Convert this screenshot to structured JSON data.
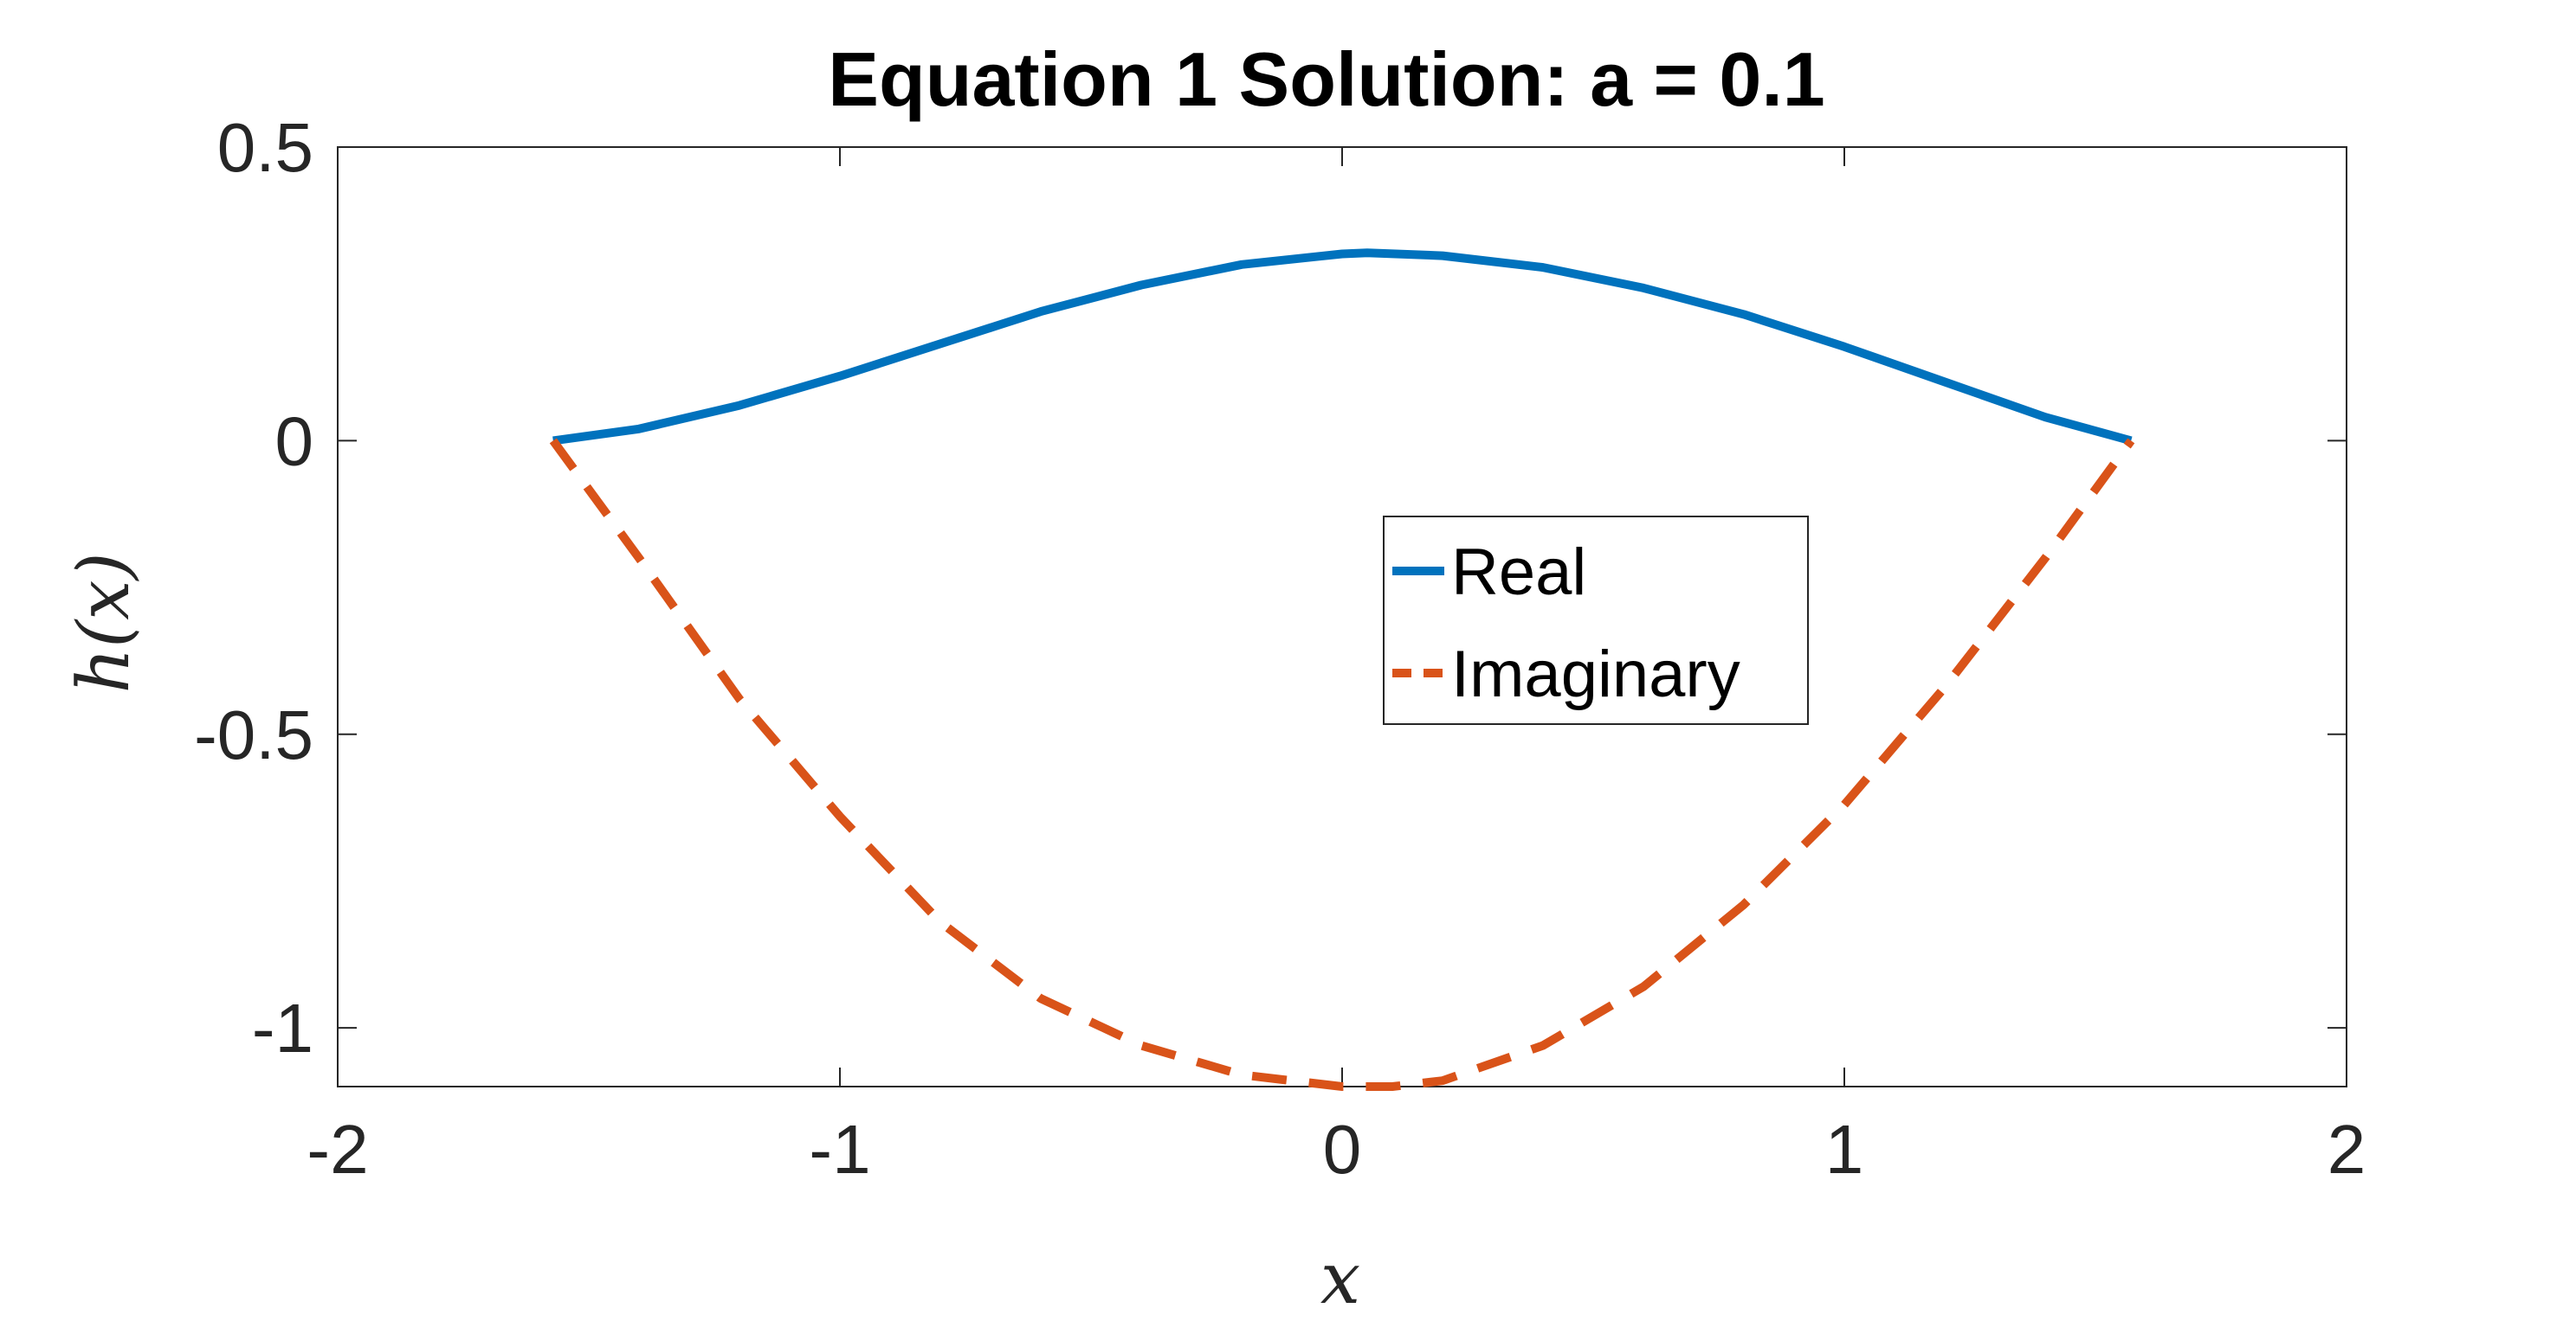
{
  "chart_data": {
    "type": "line",
    "title": "Equation 1 Solution: a = 0.1",
    "xlabel": "x",
    "ylabel": "h(x)",
    "xlim": [
      -2,
      2
    ],
    "ylim": [
      -1.1,
      0.5
    ],
    "xticks": [
      -2,
      -1,
      0,
      1,
      2
    ],
    "xtick_labels": [
      "-2",
      "-1",
      "0",
      "1",
      "2"
    ],
    "yticks": [
      0.5,
      0,
      -0.5,
      -1
    ],
    "ytick_labels": [
      "0.5",
      "0",
      "-0.5",
      "-1"
    ],
    "grid": false,
    "legend_position": "center-right",
    "series": [
      {
        "name": "Real",
        "color": "#0072BD",
        "style": "solid",
        "x": [
          -1.571,
          -1.4,
          -1.2,
          -1.0,
          -0.8,
          -0.6,
          -0.4,
          -0.2,
          0.0,
          0.05,
          0.2,
          0.4,
          0.6,
          0.8,
          1.0,
          1.2,
          1.4,
          1.571
        ],
        "y": [
          0.0,
          0.02,
          0.06,
          0.11,
          0.165,
          0.22,
          0.265,
          0.3,
          0.318,
          0.32,
          0.315,
          0.295,
          0.26,
          0.215,
          0.16,
          0.1,
          0.04,
          0.0
        ]
      },
      {
        "name": "Imaginary",
        "color": "#D95319",
        "style": "dashed",
        "x": [
          -1.571,
          -1.4,
          -1.2,
          -1.0,
          -0.8,
          -0.6,
          -0.4,
          -0.2,
          0.0,
          0.1,
          0.2,
          0.4,
          0.6,
          0.8,
          1.0,
          1.2,
          1.4,
          1.571
        ],
        "y": [
          0.0,
          -0.2,
          -0.44,
          -0.64,
          -0.82,
          -0.95,
          -1.03,
          -1.08,
          -1.1,
          -1.1,
          -1.09,
          -1.03,
          -0.93,
          -0.79,
          -0.62,
          -0.42,
          -0.2,
          0.0
        ]
      }
    ]
  }
}
